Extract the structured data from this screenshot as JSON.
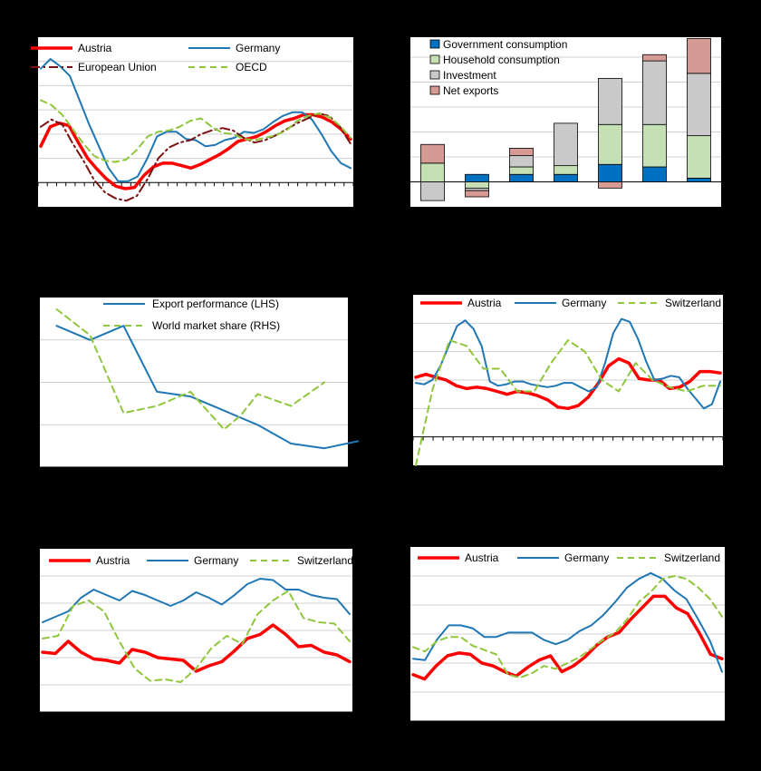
{
  "chart_data": [
    {
      "type": "line",
      "legend_placement": "top",
      "series": [
        {
          "name": "Austria",
          "color": "#ff0000",
          "width": 3.5,
          "dash": "",
          "values": [
            1.5,
            2.3,
            2.45,
            2.35,
            1.65,
            1.0,
            0.55,
            0.15,
            -0.15,
            -0.25,
            -0.2,
            0.3,
            0.65,
            0.8,
            0.8,
            0.7,
            0.6,
            0.75,
            0.95,
            1.15,
            1.4,
            1.7,
            1.8,
            1.9,
            2.1,
            2.35,
            2.55,
            2.65,
            2.8,
            2.8,
            2.7,
            2.5,
            2.2,
            1.8
          ]
        },
        {
          "name": "Germany",
          "color": "#1f77b4",
          "width": 2,
          "dash": "",
          "values": [
            4.7,
            5.1,
            4.8,
            4.4,
            3.4,
            2.4,
            1.5,
            0.6,
            0.05,
            0.05,
            0.25,
            1.0,
            1.9,
            2.1,
            2.1,
            1.8,
            1.75,
            1.5,
            1.55,
            1.75,
            1.85,
            2.1,
            2.05,
            2.2,
            2.5,
            2.75,
            2.9,
            2.9,
            2.6,
            2.0,
            1.3,
            0.8,
            0.6
          ]
        },
        {
          "name": "European Union",
          "color": "#7a1212",
          "width": 2,
          "dash": "10,4,2,4",
          "values": [
            2.3,
            2.6,
            2.4,
            1.6,
            0.9,
            0.1,
            -0.4,
            -0.65,
            -0.75,
            -0.55,
            0.15,
            1.0,
            1.45,
            1.65,
            1.75,
            2.0,
            2.15,
            2.25,
            2.15,
            1.85,
            1.65,
            1.75,
            1.95,
            2.2,
            2.45,
            2.65,
            2.85,
            2.75,
            2.3,
            1.6
          ]
        },
        {
          "name": "OECD",
          "color": "#8fc63c",
          "width": 2,
          "dash": "7,5",
          "values": [
            3.4,
            3.2,
            2.8,
            2.2,
            1.6,
            1.1,
            0.9,
            0.85,
            0.95,
            1.35,
            1.9,
            2.1,
            2.15,
            2.3,
            2.55,
            2.65,
            2.3,
            2.05,
            2.0,
            1.8,
            1.75,
            1.85,
            1.95,
            2.15,
            2.55,
            2.75,
            2.85,
            2.7,
            2.35,
            1.85
          ]
        }
      ],
      "ylim": [
        -1,
        6
      ]
    },
    {
      "type": "bar",
      "legend_placement": "top-left",
      "series": [
        {
          "name": "Government consumption",
          "color": "#0070c0",
          "values": [
            0,
            0.3,
            0.3,
            0.3,
            0.7,
            0.6,
            0.15
          ]
        },
        {
          "name": "Household consumption",
          "color": "#c5e0b4",
          "values": [
            0.75,
            -0.25,
            0.3,
            0.35,
            1.6,
            1.7,
            1.7
          ]
        },
        {
          "name": "Investment",
          "color": "#c9c9c9",
          "values": [
            -0.75,
            -0.1,
            0.45,
            1.7,
            1.85,
            2.55,
            2.5
          ]
        },
        {
          "name": "Net exports",
          "color": "#d69a94",
          "values": [
            0.75,
            -0.25,
            0.3,
            0,
            -0.25,
            0.25,
            1.4
          ]
        }
      ],
      "ylim": [
        -1,
        5.8
      ]
    },
    {
      "type": "line",
      "legend_placement": "top-right",
      "series": [
        {
          "name": "Export performance (LHS)",
          "color": "#1f77b4",
          "width": 2,
          "dash": "",
          "x": [
            0.5,
            1.5,
            2.5,
            3.5,
            4.5,
            5.5,
            6.5,
            7.5,
            8.5,
            9.5
          ],
          "values": [
            3.0,
            2.7,
            3.0,
            1.6,
            1.5,
            1.2,
            0.9,
            0.5,
            0.4,
            0.55
          ]
        },
        {
          "name": "World market share (RHS)",
          "color": "#8fc63c",
          "width": 2,
          "dash": "7,5",
          "x": [
            0.5,
            1.5,
            2.5,
            3.5,
            4.5,
            5.5,
            6.0,
            6.5,
            7.5,
            8.5
          ],
          "values": [
            3.35,
            2.8,
            1.15,
            1.3,
            1.6,
            0.8,
            1.1,
            1.55,
            1.3,
            1.8
          ]
        }
      ],
      "xlim": [
        0,
        9.2
      ],
      "ylim": [
        0,
        3.6
      ]
    },
    {
      "type": "line",
      "legend_placement": "top",
      "series": [
        {
          "name": "Austria",
          "color": "#ff0000",
          "width": 3.5,
          "dash": "",
          "values": [
            2.1,
            2.2,
            2.1,
            2.0,
            1.8,
            1.7,
            1.75,
            1.7,
            1.6,
            1.5,
            1.6,
            1.55,
            1.45,
            1.3,
            1.05,
            1.0,
            1.1,
            1.4,
            1.9,
            2.5,
            2.75,
            2.6,
            2.05,
            2.0,
            2.0,
            1.7,
            1.75,
            1.95,
            2.3,
            2.3,
            2.25
          ]
        },
        {
          "name": "Germany",
          "color": "#1f77b4",
          "width": 2,
          "dash": "",
          "values": [
            1.9,
            1.85,
            2.0,
            2.5,
            3.2,
            3.9,
            4.1,
            3.8,
            3.2,
            1.95,
            1.8,
            1.85,
            1.95,
            1.95,
            1.85,
            1.8,
            1.75,
            1.8,
            1.9,
            1.9,
            1.75,
            1.6,
            1.75,
            2.6,
            3.65,
            4.15,
            4.05,
            3.45,
            2.65,
            2.0,
            2.05,
            2.15,
            2.1,
            1.7,
            1.35,
            1.0,
            1.15,
            1.95
          ]
        },
        {
          "name": "Switzerland",
          "color": "#8fc63c",
          "width": 2,
          "dash": "7,5",
          "values": [
            -1.0,
            1.7,
            3.4,
            3.2,
            2.4,
            2.4,
            1.6,
            1.6,
            2.6,
            3.4,
            3.0,
            2.0,
            1.6,
            2.6,
            2.0,
            1.75,
            1.6,
            1.8,
            1.8
          ]
        }
      ],
      "ylim": [
        -1,
        5
      ]
    },
    {
      "type": "line",
      "legend_placement": "top",
      "series": [
        {
          "name": "Austria",
          "color": "#ff0000",
          "width": 3.5,
          "dash": "",
          "values": [
            2.2,
            2.15,
            2.6,
            2.2,
            1.95,
            1.9,
            1.8,
            2.3,
            2.2,
            2.0,
            1.95,
            1.9,
            1.5,
            1.7,
            1.85,
            2.25,
            2.7,
            2.85,
            3.2,
            2.85,
            2.4,
            2.45,
            2.2,
            2.1,
            1.85
          ]
        },
        {
          "name": "Germany",
          "color": "#1f77b4",
          "width": 2,
          "dash": "",
          "values": [
            3.3,
            3.5,
            3.7,
            4.2,
            4.5,
            4.3,
            4.1,
            4.45,
            4.3,
            4.1,
            3.9,
            4.1,
            4.4,
            4.2,
            3.95,
            4.3,
            4.7,
            4.9,
            4.85,
            4.5,
            4.5,
            4.3,
            4.2,
            4.15,
            3.6
          ]
        },
        {
          "name": "Switzerland",
          "color": "#8fc63c",
          "width": 2,
          "dash": "7,5",
          "values": [
            2.7,
            2.8,
            3.9,
            4.1,
            3.7,
            2.6,
            1.6,
            1.15,
            1.2,
            1.1,
            1.6,
            2.35,
            2.8,
            2.5,
            3.6,
            4.1,
            4.45,
            3.45,
            3.3,
            3.25,
            2.6
          ]
        }
      ],
      "ylim": [
        0,
        6
      ]
    },
    {
      "type": "line",
      "legend_placement": "top",
      "series": [
        {
          "name": "Austria",
          "color": "#ff0000",
          "width": 3.5,
          "dash": "",
          "values": [
            1.6,
            1.45,
            1.9,
            2.25,
            2.35,
            2.3,
            2.0,
            1.9,
            1.7,
            1.55,
            1.85,
            2.1,
            2.25,
            1.7,
            1.9,
            2.2,
            2.6,
            2.9,
            3.05,
            3.5,
            3.9,
            4.3,
            4.3,
            3.9,
            3.7,
            3.05,
            2.3,
            2.15
          ]
        },
        {
          "name": "Germany",
          "color": "#1f77b4",
          "width": 2,
          "dash": "",
          "values": [
            2.15,
            2.1,
            2.8,
            3.3,
            3.3,
            3.2,
            2.9,
            2.9,
            3.05,
            3.05,
            3.05,
            2.8,
            2.65,
            2.8,
            3.1,
            3.3,
            3.65,
            4.1,
            4.6,
            4.9,
            5.1,
            4.9,
            4.5,
            4.2,
            3.5,
            2.75,
            1.7
          ]
        },
        {
          "name": "Switzerland",
          "color": "#8fc63c",
          "width": 2,
          "dash": "7,5",
          "values": [
            2.55,
            2.4,
            2.75,
            2.9,
            2.9,
            2.6,
            2.45,
            2.3,
            1.6,
            1.5,
            1.65,
            1.9,
            1.8,
            2.0,
            2.2,
            2.5,
            2.8,
            3.05,
            3.5,
            4.1,
            4.45,
            4.9,
            5.0,
            4.9,
            4.6,
            4.2,
            3.6
          ]
        }
      ],
      "ylim": [
        0,
        6
      ]
    }
  ]
}
